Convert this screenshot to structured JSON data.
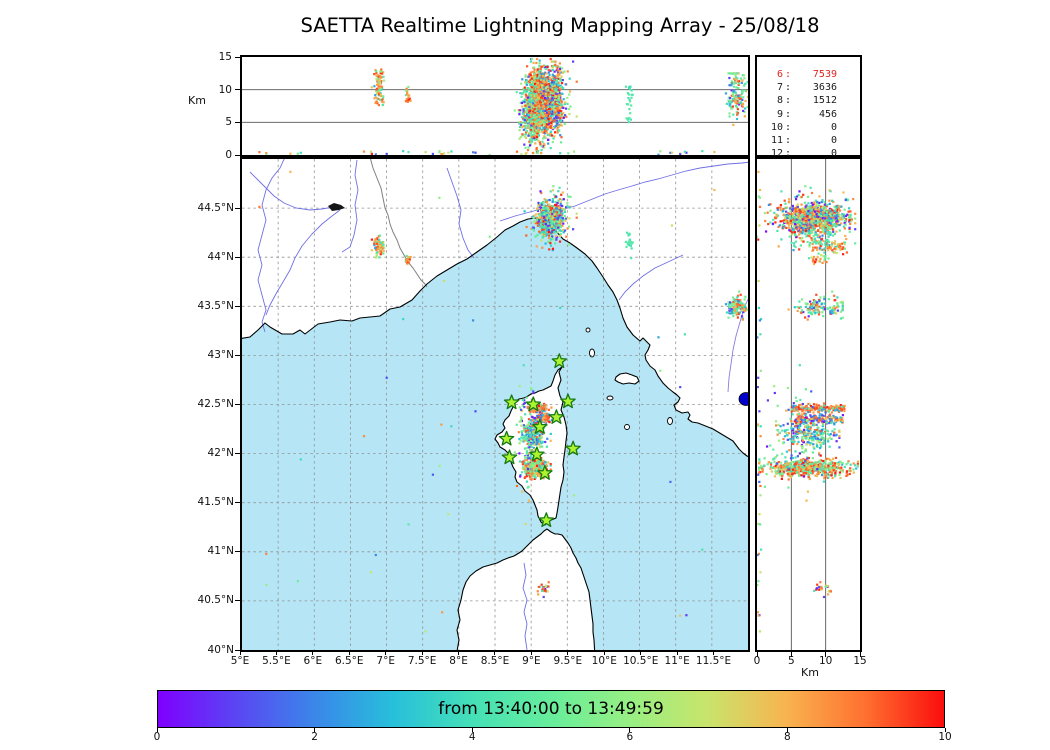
{
  "title": "SAETTA Realtime Lightning Mapping Array - 25/08/18",
  "colors": {
    "sea": "#B6E6F5",
    "land": "#FFFFFF",
    "coast": "#000000",
    "river": "#6F6FE4",
    "river_alt": "#8F7ADF",
    "country_border": "#808080",
    "grid_dash": "#909090",
    "panel_grid": "#555555",
    "lake_dark": "#151515",
    "lake_blue": "#0000CC",
    "star_fill": "#ADF32F",
    "star_stroke": "#157815",
    "legend_highlight": "#E32222",
    "legend_text": "#1A1A1A"
  },
  "legend": {
    "separator": ":"
  },
  "axes": {
    "alt_panel": {
      "label": "Km",
      "ticks": [
        {
          "label": "15",
          "value": 15
        },
        {
          "label": "10",
          "value": 10
        },
        {
          "label": "5",
          "value": 5
        },
        {
          "label": "0",
          "value": 0
        }
      ],
      "range": [
        0,
        15
      ],
      "gridlines_km": [
        5,
        10
      ]
    },
    "map": {
      "lon_range": [
        5,
        12
      ],
      "lat_range": [
        40,
        45
      ],
      "lon_ticks": [
        {
          "label": "5°E",
          "value": 5
        },
        {
          "label": "5.5°E",
          "value": 5.5
        },
        {
          "label": "6°E",
          "value": 6
        },
        {
          "label": "6.5°E",
          "value": 6.5
        },
        {
          "label": "7°E",
          "value": 7
        },
        {
          "label": "7.5°E",
          "value": 7.5
        },
        {
          "label": "8°E",
          "value": 8
        },
        {
          "label": "8.5°E",
          "value": 8.5
        },
        {
          "label": "9°E",
          "value": 9
        },
        {
          "label": "9.5°E",
          "value": 9.5
        },
        {
          "label": "10°E",
          "value": 10
        },
        {
          "label": "10.5°E",
          "value": 10.5
        },
        {
          "label": "11°E",
          "value": 11
        },
        {
          "label": "11.5°E",
          "value": 11.5
        }
      ],
      "lat_ticks": [
        {
          "label": "44.5°N",
          "value": 44.5
        },
        {
          "label": "44°N",
          "value": 44
        },
        {
          "label": "43.5°N",
          "value": 43.5
        },
        {
          "label": "43°N",
          "value": 43
        },
        {
          "label": "42.5°N",
          "value": 42.5
        },
        {
          "label": "42°N",
          "value": 42
        },
        {
          "label": "41.5°N",
          "value": 41.5
        },
        {
          "label": "41°N",
          "value": 41
        },
        {
          "label": "40.5°N",
          "value": 40.5
        },
        {
          "label": "40°N",
          "value": 40
        }
      ],
      "grid_step_deg": 0.5
    },
    "right_panel": {
      "label": "Km",
      "ticks": [
        {
          "label": "0",
          "value": 0
        },
        {
          "label": "5",
          "value": 5
        },
        {
          "label": "10",
          "value": 10
        },
        {
          "label": "15",
          "value": 15
        }
      ],
      "range": [
        0,
        15
      ],
      "gridlines_km": [
        5,
        10
      ]
    }
  },
  "colorbar": {
    "label": "from 13:40:00 to 13:49:59",
    "ticks": [
      {
        "label": "0",
        "value": 0
      },
      {
        "label": "2",
        "value": 2
      },
      {
        "label": "4",
        "value": 4
      },
      {
        "label": "6",
        "value": 6
      },
      {
        "label": "8",
        "value": 8
      },
      {
        "label": "10",
        "value": 10
      }
    ],
    "range": [
      0,
      10
    ],
    "stops": [
      "#7F00FF",
      "#5A46F3",
      "#3A87E9",
      "#27C0DB",
      "#45E0B7",
      "#67ED9B",
      "#97EF83",
      "#C9E46B",
      "#F8B350",
      "#FF7030",
      "#FB0D0D"
    ]
  },
  "chart_data": {
    "type": "scatter",
    "title": "SAETTA Realtime Lightning Mapping Array - 25/08/18",
    "time_window": {
      "start": "13:40:00",
      "end": "13:49:59"
    },
    "panels": [
      {
        "name": "altitude-vs-longitude",
        "x": "longitude 5-12 E",
        "y": "altitude 0-15 km",
        "grid_km": [
          5,
          10
        ]
      },
      {
        "name": "map",
        "x": "longitude 5-12 E",
        "y": "latitude 40-45 N",
        "grid_deg": 0.5
      },
      {
        "name": "altitude-vs-latitude",
        "x": "altitude 0-15 km",
        "y": "latitude 40-45 N",
        "grid_km": [
          5,
          10
        ]
      }
    ],
    "station_event_counts": [
      {
        "min_stations": "6",
        "events": "7539",
        "highlight": true
      },
      {
        "min_stations": "7",
        "events": "3636",
        "highlight": false
      },
      {
        "min_stations": "8",
        "events": "1512",
        "highlight": false
      },
      {
        "min_stations": "9",
        "events": "456",
        "highlight": false
      },
      {
        "min_stations": "10",
        "events": "0",
        "highlight": false
      },
      {
        "min_stations": "11",
        "events": "0",
        "highlight": false
      },
      {
        "min_stations": "12",
        "events": "0",
        "highlight": false
      }
    ],
    "stations_lonlat": [
      [
        9.39,
        42.94
      ],
      [
        8.73,
        42.52
      ],
      [
        9.03,
        42.5
      ],
      [
        9.51,
        42.53
      ],
      [
        9.35,
        42.37
      ],
      [
        9.12,
        42.27
      ],
      [
        8.66,
        42.15
      ],
      [
        9.58,
        42.05
      ],
      [
        8.7,
        41.96
      ],
      [
        9.08,
        41.99
      ],
      [
        9.19,
        41.8
      ],
      [
        9.21,
        41.32
      ]
    ],
    "clusters": [
      {
        "name": "genoa-storm-west-core",
        "count": 420,
        "lon": [
          "n",
          9.2,
          0.045
        ],
        "lat": [
          "n",
          44.38,
          0.065
        ],
        "alt": [
          "n",
          8.3,
          2.1,
          1.2,
          13.6
        ],
        "time_mix": [
          [
            7.6,
            9.9,
            0.72
          ],
          [
            4.0,
            5.6,
            0.14
          ],
          [
            2.0,
            3.6,
            0.07
          ],
          [
            0.2,
            1.6,
            0.07
          ]
        ]
      },
      {
        "name": "genoa-storm-east-core",
        "count": 360,
        "lon": [
          "n",
          9.345,
          0.04
        ],
        "lat": [
          "n",
          44.41,
          0.055
        ],
        "alt": [
          "n",
          8.6,
          2.3,
          1.0,
          13.8
        ],
        "time_mix": [
          [
            7.4,
            10.0,
            0.66
          ],
          [
            4.0,
            5.8,
            0.18
          ],
          [
            1.8,
            3.6,
            0.08
          ],
          [
            0.2,
            1.6,
            0.08
          ]
        ]
      },
      {
        "name": "genoa-storm-halo",
        "count": 330,
        "lon": [
          "n",
          9.27,
          0.12
        ],
        "lat": [
          "n",
          44.4,
          0.12
        ],
        "alt": [
          "n",
          8.0,
          2.9,
          0.4,
          14.3
        ],
        "time_mix": [
          [
            7.4,
            10.0,
            0.26
          ],
          [
            3.8,
            5.9,
            0.34
          ],
          [
            6.0,
            7.2,
            0.1
          ],
          [
            1.8,
            3.7,
            0.15
          ],
          [
            0.1,
            1.7,
            0.15
          ]
        ]
      },
      {
        "name": "alps-cell",
        "count": 85,
        "lon": [
          "n",
          6.9,
          0.035
        ],
        "lat": [
          "n",
          44.1,
          0.04
        ],
        "alt": [
          "u",
          7.6,
          13.4
        ],
        "time_mix": [
          [
            7.5,
            9.8,
            0.55
          ],
          [
            3.9,
            5.5,
            0.25
          ],
          [
            6.2,
            7.1,
            0.12
          ],
          [
            1.5,
            3.0,
            0.08
          ]
        ]
      },
      {
        "name": "alps-cell-small",
        "count": 18,
        "lon": [
          "n",
          7.3,
          0.022
        ],
        "lat": [
          "n",
          43.97,
          0.022
        ],
        "alt": [
          "u",
          8.0,
          10.6
        ],
        "time_mix": [
          [
            7.8,
            9.8,
            0.7
          ],
          [
            4.5,
            5.5,
            0.3
          ]
        ]
      },
      {
        "name": "liguria-east-streak",
        "count": 26,
        "lon": [
          "n",
          10.36,
          0.018
        ],
        "lat": [
          "n",
          44.14,
          0.05
        ],
        "alt": [
          "u",
          5.0,
          10.5
        ],
        "time_mix": [
          [
            3.8,
            4.8,
            1.0
          ]
        ]
      },
      {
        "name": "tuscany-east-cell",
        "count": 130,
        "lon": [
          "n",
          11.85,
          0.07
        ],
        "lat": [
          "n",
          43.5,
          0.05
        ],
        "alt": [
          "n",
          9.0,
          1.8,
          4.0,
          12.5
        ],
        "time_mix": [
          [
            3.8,
            5.9,
            0.5
          ],
          [
            7.5,
            9.9,
            0.32
          ],
          [
            1.8,
            3.4,
            0.1
          ],
          [
            0.2,
            1.5,
            0.08
          ]
        ]
      },
      {
        "name": "corsica-streak-north",
        "count": 150,
        "lon": [
          "n",
          9.1,
          0.06
        ],
        "lat": [
          "n",
          42.46,
          0.02
        ],
        "alt": [
          "u",
          5.0,
          12.8
        ],
        "time_mix": [
          [
            7.8,
            9.9,
            0.72
          ],
          [
            1.8,
            3.2,
            0.16
          ],
          [
            4.2,
            5.6,
            0.12
          ]
        ]
      },
      {
        "name": "corsica-streak-mid",
        "count": 150,
        "lon": [
          "n",
          9.15,
          0.06
        ],
        "lat": [
          "n",
          42.35,
          0.025
        ],
        "alt": [
          "u",
          5.5,
          12.6
        ],
        "time_mix": [
          [
            7.6,
            9.9,
            0.55
          ],
          [
            1.6,
            3.2,
            0.25
          ],
          [
            0.2,
            1.4,
            0.2
          ]
        ]
      },
      {
        "name": "corsica-mid-mix",
        "count": 210,
        "lon": [
          "n",
          9.05,
          0.075
        ],
        "lat": [
          "n",
          42.19,
          0.07
        ],
        "alt": [
          "n",
          7.6,
          2.0,
          3.0,
          12.0
        ],
        "time_mix": [
          [
            1.6,
            3.4,
            0.25
          ],
          [
            0.2,
            1.5,
            0.2
          ],
          [
            3.8,
            5.2,
            0.25
          ],
          [
            6.2,
            7.3,
            0.15
          ],
          [
            7.6,
            9.6,
            0.15
          ]
        ]
      },
      {
        "name": "corsica-south-band",
        "count": 540,
        "lon": [
          "n",
          9.06,
          0.07
        ],
        "lat": [
          "n",
          41.85,
          0.045
        ],
        "alt": [
          "n",
          7.0,
          3.3,
          0.3,
          14.7
        ],
        "time_mix": [
          [
            7.5,
            10.0,
            0.52
          ],
          [
            5.0,
            6.2,
            0.23
          ],
          [
            3.8,
            4.9,
            0.17
          ],
          [
            1.8,
            3.4,
            0.08
          ]
        ]
      },
      {
        "name": "corsica-west-fringe",
        "count": 110,
        "lon": [
          "n",
          8.93,
          0.06
        ],
        "lat": [
          "n",
          42.12,
          0.26
        ],
        "alt": [
          "n",
          6.0,
          2.6,
          0.5,
          12.0
        ],
        "time_mix": [
          [
            3.8,
            5.4,
            0.5
          ],
          [
            5.4,
            6.4,
            0.2
          ],
          [
            7.6,
            9.4,
            0.15
          ],
          [
            0.2,
            1.6,
            0.15
          ]
        ]
      },
      {
        "name": "sardinia-cell",
        "count": 26,
        "lon": [
          "n",
          9.17,
          0.035
        ],
        "lat": [
          "n",
          40.62,
          0.04
        ],
        "alt": [
          "u",
          7.6,
          11.2
        ],
        "time_mix": [
          [
            7.6,
            9.6,
            0.4
          ],
          [
            3.9,
            4.9,
            0.2
          ],
          [
            0.3,
            1.4,
            0.15
          ],
          [
            6.3,
            7.2,
            0.15
          ],
          [
            9.6,
            10.0,
            0.1
          ]
        ]
      },
      {
        "name": "low-alt-noise",
        "count": 40,
        "lon": [
          "u",
          5.1,
          11.95
        ],
        "lat": [
          "u",
          40.05,
          44.95
        ],
        "alt": [
          "u",
          0.0,
          0.6
        ],
        "time_mix": [
          [
            0.0,
            10.0,
            1.0
          ]
        ]
      }
    ]
  }
}
